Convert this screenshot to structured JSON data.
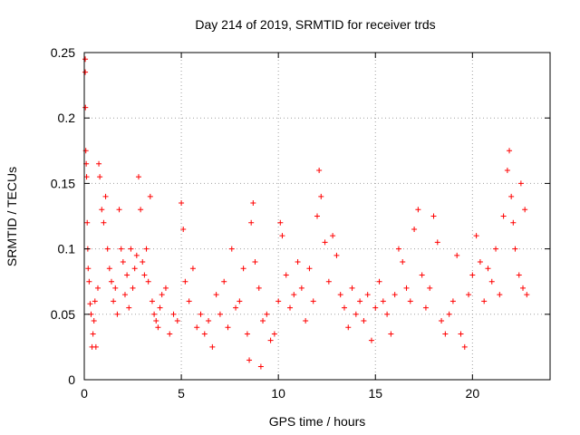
{
  "chart_data": {
    "type": "scatter",
    "title": "Day 214 of 2019, SRMTID for receiver trds",
    "xlabel": "GPS time / hours",
    "ylabel": "SRMTID / TECUs",
    "xlim": [
      0,
      24
    ],
    "ylim": [
      0,
      0.25
    ],
    "xticks": [
      0,
      5,
      10,
      15,
      20
    ],
    "xtick_labels": [
      "0",
      "5",
      "10",
      "15",
      "20"
    ],
    "yticks": [
      0,
      0.05,
      0.1,
      0.15,
      0.2,
      0.25
    ],
    "ytick_labels": [
      "0",
      "0.05",
      "0.1",
      "0.15",
      "0.2",
      "0.25"
    ],
    "grid": true,
    "marker": "+",
    "color": "#ff0000",
    "series": [
      {
        "name": "SRMTID",
        "points": [
          [
            0.05,
            0.245
          ],
          [
            0.05,
            0.235
          ],
          [
            0.06,
            0.208
          ],
          [
            0.08,
            0.175
          ],
          [
            0.1,
            0.165
          ],
          [
            0.12,
            0.155
          ],
          [
            0.15,
            0.12
          ],
          [
            0.18,
            0.1
          ],
          [
            0.2,
            0.085
          ],
          [
            0.25,
            0.075
          ],
          [
            0.3,
            0.058
          ],
          [
            0.35,
            0.05
          ],
          [
            0.4,
            0.025
          ],
          [
            0.45,
            0.035
          ],
          [
            0.5,
            0.045
          ],
          [
            0.55,
            0.06
          ],
          [
            0.6,
            0.025
          ],
          [
            0.7,
            0.07
          ],
          [
            0.75,
            0.165
          ],
          [
            0.8,
            0.155
          ],
          [
            0.9,
            0.13
          ],
          [
            1.0,
            0.12
          ],
          [
            1.1,
            0.14
          ],
          [
            1.2,
            0.1
          ],
          [
            1.3,
            0.085
          ],
          [
            1.4,
            0.075
          ],
          [
            1.5,
            0.06
          ],
          [
            1.6,
            0.07
          ],
          [
            1.7,
            0.05
          ],
          [
            1.8,
            0.13
          ],
          [
            1.9,
            0.1
          ],
          [
            2.0,
            0.09
          ],
          [
            2.1,
            0.065
          ],
          [
            2.2,
            0.08
          ],
          [
            2.3,
            0.055
          ],
          [
            2.4,
            0.1
          ],
          [
            2.5,
            0.07
          ],
          [
            2.6,
            0.085
          ],
          [
            2.7,
            0.095
          ],
          [
            2.8,
            0.155
          ],
          [
            2.9,
            0.13
          ],
          [
            3.0,
            0.09
          ],
          [
            3.1,
            0.08
          ],
          [
            3.2,
            0.1
          ],
          [
            3.3,
            0.075
          ],
          [
            3.4,
            0.14
          ],
          [
            3.5,
            0.06
          ],
          [
            3.6,
            0.05
          ],
          [
            3.7,
            0.045
          ],
          [
            3.8,
            0.04
          ],
          [
            3.9,
            0.055
          ],
          [
            4.0,
            0.065
          ],
          [
            4.2,
            0.07
          ],
          [
            4.4,
            0.035
          ],
          [
            4.6,
            0.05
          ],
          [
            4.8,
            0.045
          ],
          [
            5.0,
            0.135
          ],
          [
            5.1,
            0.115
          ],
          [
            5.2,
            0.075
          ],
          [
            5.4,
            0.06
          ],
          [
            5.6,
            0.085
          ],
          [
            5.8,
            0.04
          ],
          [
            6.0,
            0.05
          ],
          [
            6.2,
            0.035
          ],
          [
            6.4,
            0.045
          ],
          [
            6.6,
            0.025
          ],
          [
            6.8,
            0.065
          ],
          [
            7.0,
            0.05
          ],
          [
            7.2,
            0.075
          ],
          [
            7.4,
            0.04
          ],
          [
            7.6,
            0.1
          ],
          [
            7.8,
            0.055
          ],
          [
            8.0,
            0.06
          ],
          [
            8.2,
            0.085
          ],
          [
            8.4,
            0.035
          ],
          [
            8.5,
            0.015
          ],
          [
            8.6,
            0.12
          ],
          [
            8.7,
            0.135
          ],
          [
            8.8,
            0.09
          ],
          [
            9.0,
            0.07
          ],
          [
            9.1,
            0.01
          ],
          [
            9.2,
            0.045
          ],
          [
            9.4,
            0.05
          ],
          [
            9.6,
            0.03
          ],
          [
            9.8,
            0.035
          ],
          [
            10.0,
            0.06
          ],
          [
            10.1,
            0.12
          ],
          [
            10.2,
            0.11
          ],
          [
            10.4,
            0.08
          ],
          [
            10.6,
            0.055
          ],
          [
            10.8,
            0.065
          ],
          [
            11.0,
            0.09
          ],
          [
            11.2,
            0.07
          ],
          [
            11.4,
            0.045
          ],
          [
            11.6,
            0.085
          ],
          [
            11.8,
            0.06
          ],
          [
            12.0,
            0.125
          ],
          [
            12.1,
            0.16
          ],
          [
            12.2,
            0.14
          ],
          [
            12.4,
            0.105
          ],
          [
            12.6,
            0.075
          ],
          [
            12.8,
            0.11
          ],
          [
            13.0,
            0.095
          ],
          [
            13.2,
            0.065
          ],
          [
            13.4,
            0.055
          ],
          [
            13.6,
            0.04
          ],
          [
            13.8,
            0.07
          ],
          [
            14.0,
            0.05
          ],
          [
            14.2,
            0.06
          ],
          [
            14.4,
            0.045
          ],
          [
            14.6,
            0.065
          ],
          [
            14.8,
            0.03
          ],
          [
            15.0,
            0.055
          ],
          [
            15.2,
            0.075
          ],
          [
            15.4,
            0.06
          ],
          [
            15.6,
            0.05
          ],
          [
            15.8,
            0.035
          ],
          [
            16.0,
            0.065
          ],
          [
            16.2,
            0.1
          ],
          [
            16.4,
            0.09
          ],
          [
            16.6,
            0.07
          ],
          [
            16.8,
            0.06
          ],
          [
            17.0,
            0.115
          ],
          [
            17.2,
            0.13
          ],
          [
            17.4,
            0.08
          ],
          [
            17.6,
            0.055
          ],
          [
            17.8,
            0.07
          ],
          [
            18.0,
            0.125
          ],
          [
            18.2,
            0.105
          ],
          [
            18.4,
            0.045
          ],
          [
            18.6,
            0.035
          ],
          [
            18.8,
            0.05
          ],
          [
            19.0,
            0.06
          ],
          [
            19.2,
            0.095
          ],
          [
            19.4,
            0.035
          ],
          [
            19.6,
            0.025
          ],
          [
            19.8,
            0.065
          ],
          [
            20.0,
            0.08
          ],
          [
            20.2,
            0.11
          ],
          [
            20.4,
            0.09
          ],
          [
            20.6,
            0.06
          ],
          [
            20.8,
            0.085
          ],
          [
            21.0,
            0.075
          ],
          [
            21.2,
            0.1
          ],
          [
            21.4,
            0.065
          ],
          [
            21.6,
            0.125
          ],
          [
            21.8,
            0.16
          ],
          [
            21.9,
            0.175
          ],
          [
            22.0,
            0.14
          ],
          [
            22.1,
            0.12
          ],
          [
            22.2,
            0.1
          ],
          [
            22.4,
            0.08
          ],
          [
            22.6,
            0.07
          ],
          [
            22.8,
            0.065
          ],
          [
            22.7,
            0.13
          ],
          [
            22.5,
            0.15
          ]
        ]
      }
    ]
  }
}
